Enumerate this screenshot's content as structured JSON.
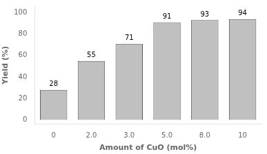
{
  "chart_data": {
    "type": "bar",
    "categories": [
      "0",
      "2.0",
      "3.0",
      "5.0",
      "8.0",
      "10"
    ],
    "values": [
      28,
      55,
      71,
      91,
      93,
      94
    ],
    "xlabel": "Amount of CuO (mol%)",
    "ylabel": "Yield (%)",
    "color": "#c0c0c0",
    "ylim": [
      -4,
      106
    ],
    "yticks": [
      0,
      20,
      40,
      60,
      80,
      100
    ],
    "grid": false,
    "data_labels": true
  }
}
